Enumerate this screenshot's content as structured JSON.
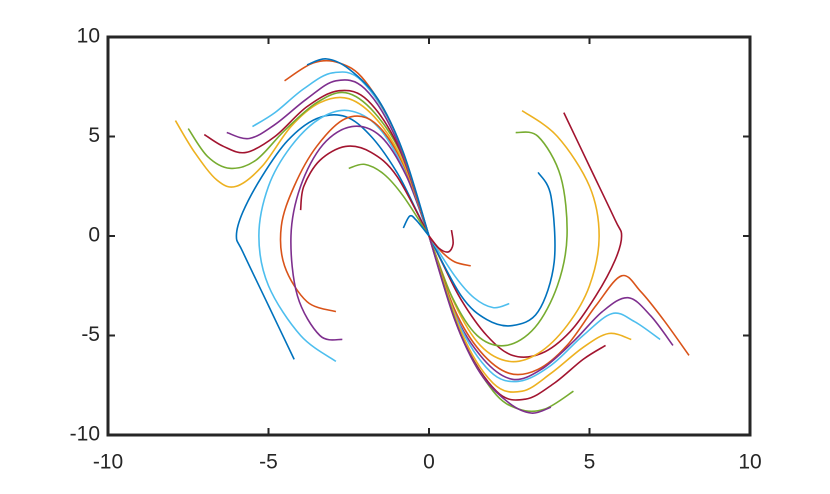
{
  "chart_data": {
    "type": "line",
    "xlim": [
      -10,
      10
    ],
    "ylim": [
      -10,
      10
    ],
    "xticks": [
      -10,
      -5,
      0,
      5,
      10
    ],
    "yticks": [
      -10,
      -5,
      0,
      5,
      10
    ],
    "series": [
      {
        "color": "#0072BD",
        "x": [
          -4.2,
          -5,
          -5.8,
          -6,
          -5.8,
          -5.2,
          -4.4,
          -3.5,
          -2.6,
          -1.8,
          -1,
          -0.4,
          0
        ],
        "y": [
          -6.2,
          -3.5,
          -0.8,
          0,
          1.2,
          3,
          4.8,
          5.9,
          6,
          5,
          3.2,
          1.3,
          0
        ]
      },
      {
        "color": "#4DBEEE",
        "x": [
          -2.9,
          -4,
          -5,
          -5.3,
          -5,
          -4.3,
          -3.4,
          -2.5,
          -1.6,
          -0.8,
          0
        ],
        "y": [
          -6.3,
          -5,
          -2.5,
          0,
          2.5,
          4.5,
          5.9,
          6.3,
          5.5,
          3.4,
          0
        ]
      },
      {
        "color": "#D95319",
        "x": [
          -2.9,
          -3.8,
          -4.5,
          -4.6,
          -4.2,
          -3.5,
          -2.6,
          -1.7,
          -0.8,
          0
        ],
        "y": [
          -3.8,
          -3.3,
          -1.5,
          0.5,
          2.5,
          4.5,
          5.9,
          5.7,
          3.6,
          0
        ]
      },
      {
        "color": "#7E2F8E",
        "x": [
          -2.7,
          -3.4,
          -4.1,
          -4.3,
          -4,
          -3.3,
          -2.4,
          -1.5,
          -0.7,
          0
        ],
        "y": [
          -5.2,
          -5,
          -3,
          0,
          2.5,
          4.6,
          5.5,
          5,
          3,
          0
        ]
      },
      {
        "color": "#A2142F",
        "x": [
          -4,
          -3.9,
          -3.4,
          -2.6,
          -1.8,
          -1,
          0
        ],
        "y": [
          1.3,
          2.5,
          3.8,
          4.5,
          4.2,
          3,
          0
        ]
      },
      {
        "color": "#77AC30",
        "x": [
          -2.5,
          -2,
          -1.4,
          -0.8,
          0
        ],
        "y": [
          3.4,
          3.6,
          3.1,
          2,
          0
        ]
      },
      {
        "color": "#EDB120",
        "x": [
          -7.9,
          -7.3,
          -6.6,
          -6,
          -5.2,
          -4.3,
          -3.4,
          -2.5,
          -1.6,
          -0.8,
          0
        ],
        "y": [
          5.8,
          4.2,
          2.8,
          2.5,
          3.5,
          5.5,
          6.7,
          6.9,
          5.8,
          3.7,
          0
        ]
      },
      {
        "color": "#77AC30",
        "x": [
          -7.5,
          -6.9,
          -6.2,
          -5.4,
          -4.5,
          -3.5,
          -2.6,
          -1.7,
          -0.8,
          0
        ],
        "y": [
          5.4,
          4,
          3.4,
          3.8,
          5.3,
          6.7,
          7.2,
          6.2,
          3.9,
          0
        ]
      },
      {
        "color": "#A2142F",
        "x": [
          -7,
          -6.4,
          -5.7,
          -4.8,
          -3.8,
          -2.8,
          -1.9,
          -0.9,
          0
        ],
        "y": [
          5.1,
          4.5,
          4.2,
          5,
          6.5,
          7.3,
          6.8,
          4.3,
          0
        ]
      },
      {
        "color": "#7E2F8E",
        "x": [
          -6.3,
          -5.6,
          -4.8,
          -3.8,
          -2.9,
          -2,
          -1,
          0
        ],
        "y": [
          5.2,
          4.9,
          5.6,
          6.9,
          7.8,
          7.4,
          4.8,
          0
        ]
      },
      {
        "color": "#4DBEEE",
        "x": [
          -5.5,
          -4.8,
          -3.9,
          -3,
          -2.1,
          -1,
          0
        ],
        "y": [
          5.5,
          6.2,
          7.4,
          8.2,
          7.8,
          5,
          0
        ]
      },
      {
        "color": "#D95319",
        "x": [
          -4.5,
          -3.6,
          -2.8,
          -2,
          -1,
          0
        ],
        "y": [
          7.8,
          8.7,
          8.7,
          7.8,
          5,
          0
        ]
      },
      {
        "color": "#0072BD",
        "x": [
          -3.8,
          -3.2,
          -2.5,
          -1.6,
          -0.8,
          0
        ],
        "y": [
          8.6,
          8.9,
          8.4,
          6.9,
          4.2,
          0
        ]
      },
      {
        "color": "#0072BD",
        "x": [
          -0.8,
          -0.6,
          -0.4,
          0
        ],
        "y": [
          0.4,
          1,
          0.8,
          0
        ]
      },
      {
        "color": "#A2142F",
        "x": [
          4.2,
          5,
          5.8,
          6,
          5.8,
          5.2,
          4.4,
          3.5,
          2.6,
          1.8,
          1,
          0.4,
          0
        ],
        "y": [
          6.2,
          3.5,
          0.8,
          0,
          -1.2,
          -3,
          -4.8,
          -5.9,
          -6,
          -5,
          -3.2,
          -1.3,
          0
        ]
      },
      {
        "color": "#EDB120",
        "x": [
          2.9,
          4,
          5,
          5.3,
          5,
          4.3,
          3.4,
          2.5,
          1.6,
          0.8,
          0
        ],
        "y": [
          6.3,
          5,
          2.5,
          0,
          -2.5,
          -4.5,
          -5.9,
          -6.3,
          -5.5,
          -3.4,
          0
        ]
      },
      {
        "color": "#77AC30",
        "x": [
          2.7,
          3.4,
          4.1,
          4.3,
          4,
          3.3,
          2.4,
          1.5,
          0.7,
          0
        ],
        "y": [
          5.2,
          5,
          3,
          0,
          -2.5,
          -4.6,
          -5.5,
          -5,
          -3,
          0
        ]
      },
      {
        "color": "#0072BD",
        "x": [
          3.4,
          3.8,
          3.9,
          3.4,
          2.6,
          1.8,
          1,
          0
        ],
        "y": [
          3.2,
          2,
          -1.3,
          -3.8,
          -4.5,
          -4.2,
          -3,
          0
        ]
      },
      {
        "color": "#4DBEEE",
        "x": [
          2.5,
          2,
          1.4,
          0.8,
          0
        ],
        "y": [
          -3.4,
          -3.6,
          -3.1,
          -2,
          0
        ]
      },
      {
        "color": "#D95319",
        "x": [
          8.1,
          7.3,
          6.6,
          6,
          5.2,
          4.3,
          3.4,
          2.5,
          1.6,
          0.8,
          0
        ],
        "y": [
          -6,
          -4.2,
          -2.8,
          -2,
          -3.5,
          -5.5,
          -6.7,
          -6.9,
          -5.8,
          -3.7,
          0
        ]
      },
      {
        "color": "#7E2F8E",
        "x": [
          7.6,
          6.9,
          6.2,
          5.4,
          4.5,
          3.5,
          2.6,
          1.7,
          0.8,
          0
        ],
        "y": [
          -5.5,
          -4,
          -3.1,
          -3.8,
          -5.3,
          -6.7,
          -7.2,
          -6.2,
          -3.9,
          0
        ]
      },
      {
        "color": "#4DBEEE",
        "x": [
          7.2,
          6.4,
          5.7,
          4.8,
          3.8,
          2.8,
          1.9,
          0.9,
          0
        ],
        "y": [
          -5.2,
          -4.3,
          -3.9,
          -5,
          -6.5,
          -7.3,
          -6.8,
          -4.3,
          0
        ]
      },
      {
        "color": "#EDB120",
        "x": [
          6.3,
          5.6,
          4.8,
          3.8,
          2.9,
          2,
          1,
          0
        ],
        "y": [
          -5.2,
          -4.9,
          -5.6,
          -6.9,
          -7.8,
          -7.4,
          -4.8,
          0
        ]
      },
      {
        "color": "#A2142F",
        "x": [
          5.5,
          4.8,
          3.9,
          3,
          2.1,
          1,
          0
        ],
        "y": [
          -5.5,
          -6.2,
          -7.4,
          -8.2,
          -7.8,
          -5,
          0
        ]
      },
      {
        "color": "#77AC30",
        "x": [
          4.5,
          3.6,
          2.8,
          2,
          1,
          0
        ],
        "y": [
          -7.8,
          -8.7,
          -8.7,
          -7.8,
          -5,
          0
        ]
      },
      {
        "color": "#7E2F8E",
        "x": [
          3.8,
          3.2,
          2.5,
          1.6,
          0.8,
          0
        ],
        "y": [
          -8.6,
          -8.9,
          -8.4,
          -6.9,
          -4.2,
          0
        ]
      },
      {
        "color": "#D95319",
        "x": [
          1.3,
          0.8,
          0.4,
          0
        ],
        "y": [
          -1.5,
          -1.3,
          -0.8,
          0
        ]
      },
      {
        "color": "#A2142F",
        "x": [
          0.7,
          0.75,
          0.6,
          0.3,
          0
        ],
        "y": [
          0.3,
          -0.4,
          -0.8,
          -0.6,
          0
        ]
      }
    ]
  }
}
